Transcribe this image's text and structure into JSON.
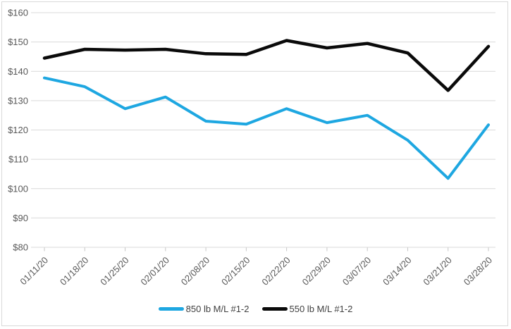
{
  "chart_data": {
    "type": "line",
    "title": "",
    "xlabel": "",
    "ylabel": "",
    "x": [
      "01/11/20",
      "01/18/20",
      "01/25/20",
      "02/01/20",
      "02/08/20",
      "02/15/20",
      "02/22/20",
      "02/29/20",
      "03/07/20",
      "03/14/20",
      "03/21/20",
      "03/28/20"
    ],
    "series": [
      {
        "name": "850 lb M/L #1-2",
        "color": "#1ea7e1",
        "stroke_width": 4,
        "values": [
          137.75,
          134.75,
          127.25,
          131.25,
          123,
          122,
          127.25,
          122.5,
          125,
          116.5,
          103.5,
          121.75
        ]
      },
      {
        "name": "550 lb M/L #1-2",
        "color": "#0a0a0a",
        "stroke_width": 4.5,
        "values": [
          144.5,
          147.5,
          147.25,
          147.5,
          146,
          145.75,
          150.5,
          148,
          149.5,
          146.25,
          133.5,
          148.5
        ]
      }
    ],
    "ylim": [
      80,
      160
    ],
    "ytick_step": 10,
    "yticks": [
      160,
      150,
      140,
      130,
      120,
      110,
      100,
      90,
      80
    ],
    "ytick_labels": [
      "$160",
      "$150",
      "$140",
      "$130",
      "$120",
      "$110",
      "$100",
      "$90",
      "$80"
    ],
    "grid": true,
    "x_labels_rotation_deg": -45,
    "legend_position": "bottom-center",
    "colors": {
      "gridline": "#d9d9d9",
      "tick": "#c6c6c6",
      "axis_label": "#595959",
      "legend_text": "#3f3f3f",
      "background": "#ffffff",
      "frame_border": "#d9d9d9"
    }
  }
}
